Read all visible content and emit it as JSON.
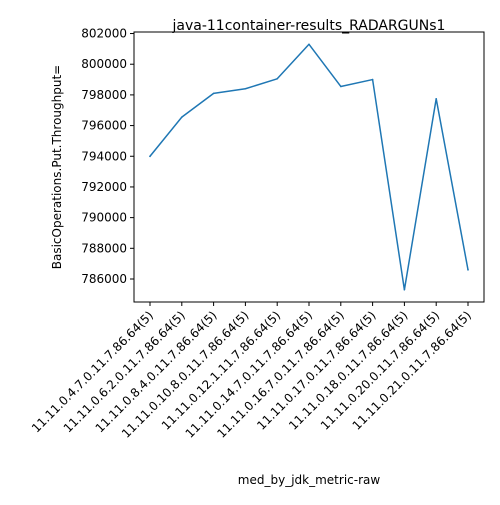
{
  "chart_data": {
    "type": "line",
    "title": "java-11container-results_RADARGUNs1",
    "xlabel": "med_by_jdk_metric-raw",
    "ylabel": "BasicOperations.Put.Throughput=",
    "categories": [
      "11.11.0.4.7.0.11.7.86.64(5)",
      "11.11.0.6.2.0.11.7.86.64(5)",
      "11.11.0.8.4.0.11.7.86.64(5)",
      "11.11.0.10.8.0.11.7.86.64(5)",
      "11.11.0.12.1.11.7.86.64(5)",
      "11.11.0.14.7.0.11.7.86.64(5)",
      "11.11.0.16.7.0.11.7.86.64(5)",
      "11.11.0.17.0.11.7.86.64(5)",
      "11.11.0.18.0.11.7.86.64(5)",
      "11.11.0.20.0.11.7.86.64(5)",
      "11.11.0.21.0.11.7.86.64(5)"
    ],
    "series": [
      {
        "values": [
          794000,
          796550,
          798100,
          798400,
          799050,
          801300,
          798550,
          799000,
          785300,
          797750,
          786600
        ],
        "color": "#1f77b4"
      }
    ],
    "yticks": [
      786000,
      788000,
      790000,
      792000,
      794000,
      796000,
      798000,
      800000,
      802000
    ],
    "ytick_labels": [
      "786000",
      "788000",
      "790000",
      "792000",
      "794000",
      "796000",
      "798000",
      "800000",
      "802000"
    ],
    "ylim": [
      784500,
      802100
    ],
    "grid": false,
    "legend": "none"
  }
}
